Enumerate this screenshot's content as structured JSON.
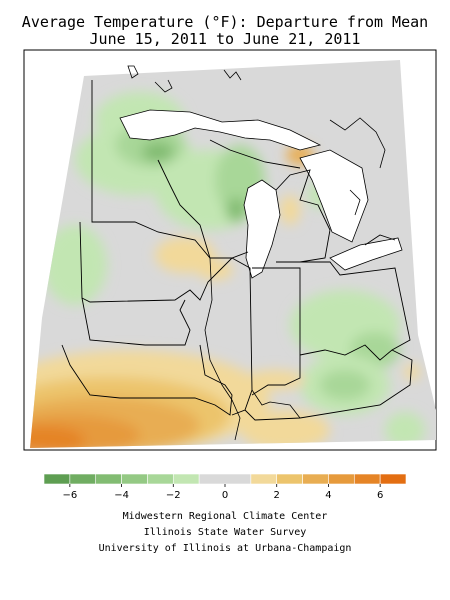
{
  "title": {
    "line1": "Average Temperature (°F): Departure from Mean",
    "line2": "June 15, 2011 to June 21, 2011"
  },
  "legend": {
    "ticks": [
      "−6",
      "−4",
      "−2",
      "0",
      "2",
      "4",
      "6"
    ],
    "bins": [
      {
        "min": -7,
        "max": -6,
        "color": "#5e9e52"
      },
      {
        "min": -6,
        "max": -5,
        "color": "#70ad62"
      },
      {
        "min": -5,
        "max": -4,
        "color": "#82bc72"
      },
      {
        "min": -4,
        "max": -3,
        "color": "#94c984"
      },
      {
        "min": -3,
        "max": -2,
        "color": "#a8d798"
      },
      {
        "min": -2,
        "max": -1,
        "color": "#c2e6b2"
      },
      {
        "min": -1,
        "max": 1,
        "color": "#d9d9d9"
      },
      {
        "min": 1,
        "max": 2,
        "color": "#f2d99a"
      },
      {
        "min": 2,
        "max": 3,
        "color": "#ecc46c"
      },
      {
        "min": 3,
        "max": 4,
        "color": "#e8ad52"
      },
      {
        "min": 4,
        "max": 5,
        "color": "#e69a3c"
      },
      {
        "min": 5,
        "max": 6,
        "color": "#e58426"
      },
      {
        "min": 6,
        "max": 7,
        "color": "#e36e12"
      }
    ]
  },
  "map": {
    "region": "Midwest United States",
    "colors": {
      "background_neutral": "#d9d9d9",
      "lake_water": "#ffffff",
      "border": "#000000"
    }
  },
  "credits": {
    "line1": "Midwestern Regional Climate Center",
    "line2": "Illinois State Water Survey",
    "line3": "University of Illinois at Urbana-Champaign"
  }
}
